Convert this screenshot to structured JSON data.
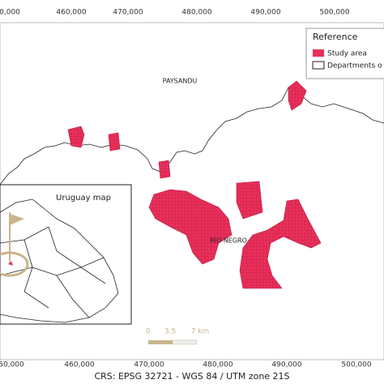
{
  "map": {
    "top_coordinates": [
      "0,000",
      "460,000",
      "470,000",
      "480,000",
      "490,000",
      "500,000"
    ],
    "bottom_coordinates": [
      "50,000",
      "460,000",
      "470,000",
      "480,000",
      "490,000",
      "500,000"
    ],
    "legend": {
      "title": "Reference",
      "items": [
        "Study area",
        "Departments o"
      ]
    },
    "labels": {
      "paysandu": "PAYSANDU",
      "rio_negro": "RIO NEGRO"
    },
    "inset": {
      "title": "Uruguay map"
    },
    "scale_bar": [
      "0",
      "3.5",
      "7 km"
    ],
    "crs": "CRS: EPSG 32721 - WGS 84 / UTM zone 21S"
  }
}
